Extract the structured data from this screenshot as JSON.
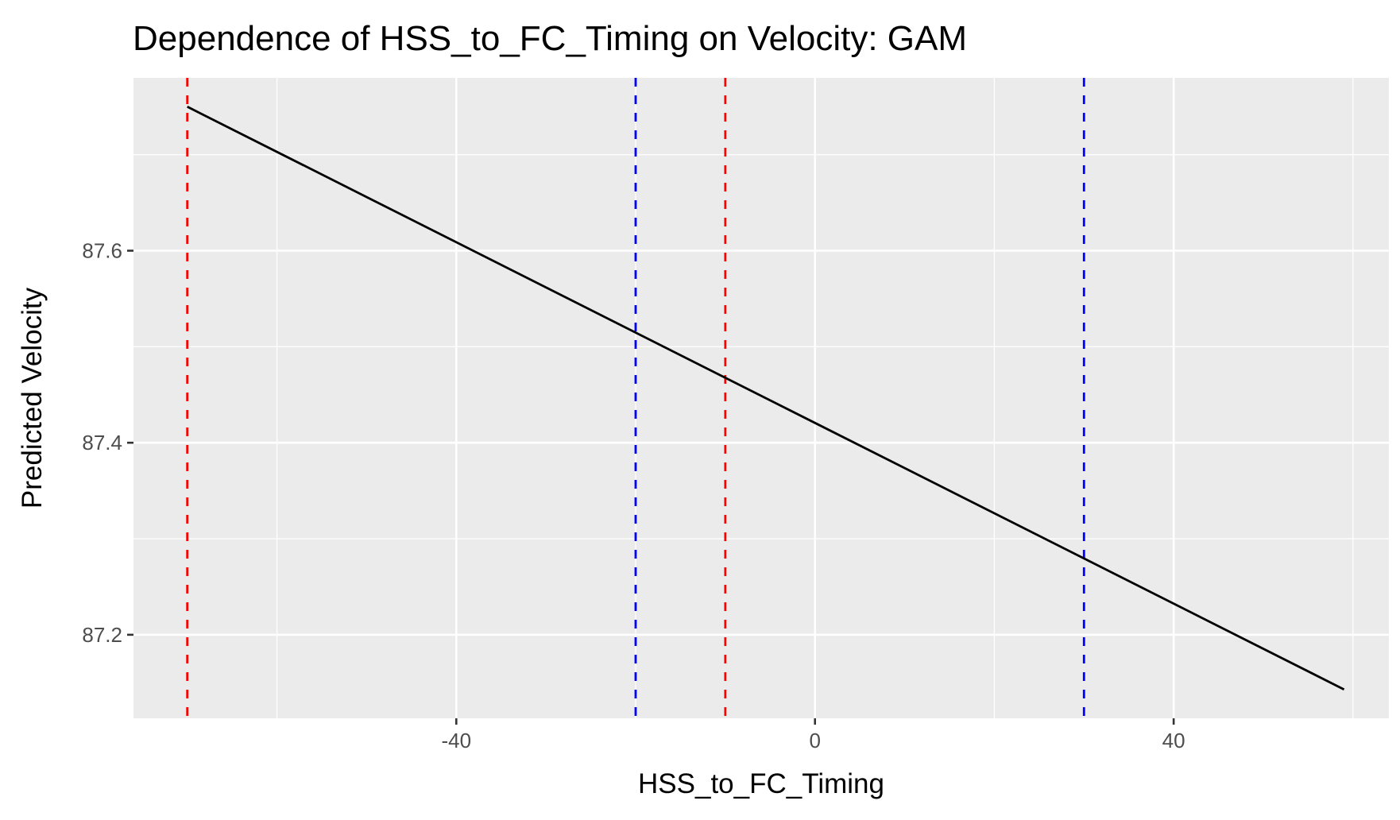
{
  "chart_data": {
    "type": "line",
    "title": "Dependence of HSS_to_FC_Timing on Velocity: GAM",
    "xlabel": "HSS_to_FC_Timing",
    "ylabel": "Predicted Velocity",
    "xlim": [
      -76,
      64
    ],
    "ylim": [
      87.113,
      87.78
    ],
    "x_ticks": [
      -40,
      0,
      40
    ],
    "x_tick_labels": [
      "-40",
      "0",
      "40"
    ],
    "x_minor_ticks": [
      -60,
      -20,
      20,
      60
    ],
    "y_ticks": [
      87.2,
      87.4,
      87.6
    ],
    "y_tick_labels": [
      "87.2",
      "87.4",
      "87.6"
    ],
    "y_minor_ticks": [
      87.3,
      87.5,
      87.7
    ],
    "grid": true,
    "series": [
      {
        "values": [
          {
            "x": -70,
            "y": 87.75
          },
          {
            "x": 59,
            "y": 87.143
          }
        ],
        "color": "#000000"
      }
    ],
    "vlines": [
      {
        "x": -70,
        "color": "#ff0000"
      },
      {
        "x": -10,
        "color": "#ff0000"
      },
      {
        "x": -20,
        "color": "#0000ff"
      },
      {
        "x": 30,
        "color": "#0000ff"
      }
    ],
    "colors": {
      "panel": "#ebebeb",
      "grid": "#ffffff",
      "tick": "#333333"
    }
  }
}
